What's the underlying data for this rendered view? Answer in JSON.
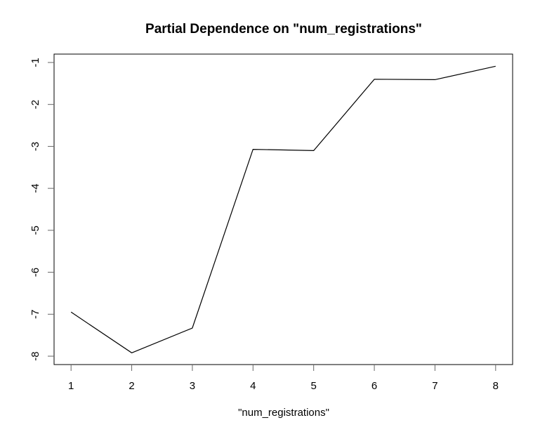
{
  "chart_data": {
    "type": "line",
    "title": "Partial Dependence on \"num_registrations\"",
    "xlabel": "\"num_registrations\"",
    "ylabel": "",
    "x": [
      1,
      2,
      3,
      4,
      5,
      6,
      7,
      8
    ],
    "series": [
      {
        "values": [
          -6.95,
          -7.92,
          -7.33,
          -3.07,
          -3.1,
          -1.4,
          -1.41,
          -1.09
        ]
      }
    ],
    "x_ticks": [
      1,
      2,
      3,
      4,
      5,
      6,
      7,
      8
    ],
    "y_ticks": [
      -8,
      -7,
      -6,
      -5,
      -4,
      -3,
      -2,
      -1
    ],
    "xlim": [
      0.72,
      8.28
    ],
    "ylim": [
      -8.2,
      -0.8
    ],
    "grid": false,
    "line_color": "#000000",
    "frame_color": "#000000",
    "tick_color": "#666666"
  }
}
